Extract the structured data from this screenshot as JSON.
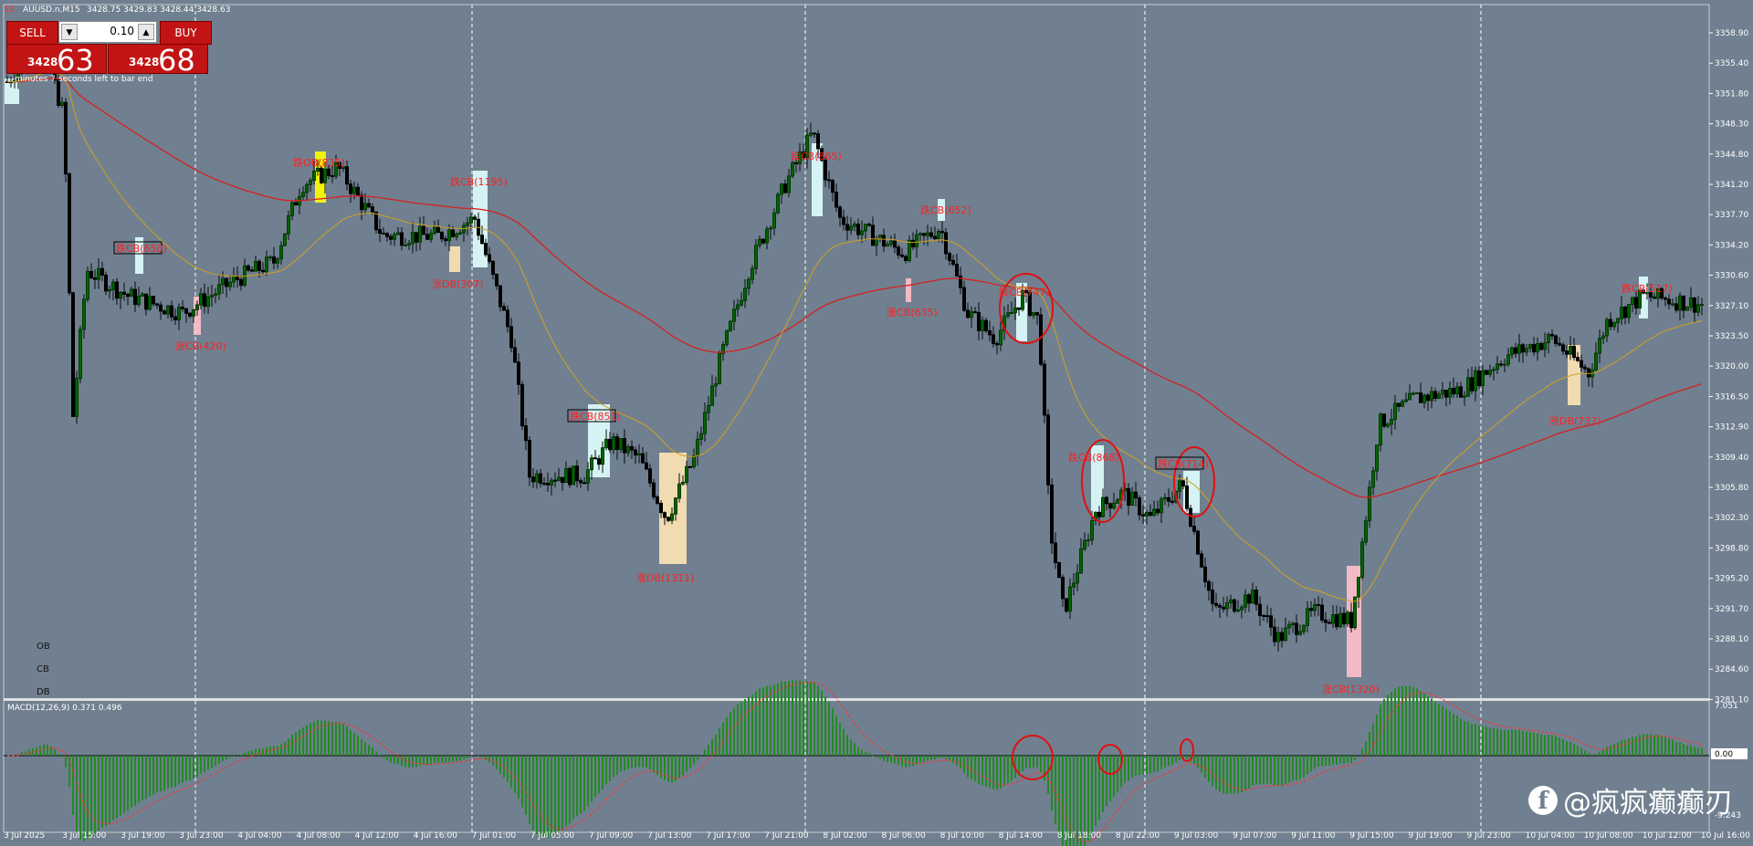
{
  "title": {
    "badge": "52",
    "symbol": "AUUSD.n,M15",
    "ohlc": "3428.75 3429.83 3428.44 3428.63"
  },
  "trade_panel": {
    "sell_label": "SELL",
    "buy_label": "BUY",
    "lot": "0.10",
    "sell_small": "3428",
    "sell_big": "63",
    "buy_small": "3428",
    "buy_big": "68"
  },
  "bar_timer": "minutes 7 seconds left to bar end",
  "legend_labels": [
    "OB",
    "CB",
    "DB"
  ],
  "macd_label": "MACD(12,26,9) 0.371 0.496",
  "price_axis": [
    "3358.90",
    "3355.40",
    "3351.80",
    "3348.30",
    "3344.80",
    "3341.20",
    "3337.70",
    "3334.20",
    "3330.60",
    "3327.10",
    "3323.50",
    "3320.00",
    "3316.50",
    "3312.90",
    "3309.40",
    "3305.80",
    "3302.30",
    "3298.80",
    "3295.20",
    "3291.70",
    "3288.10",
    "3284.60",
    "3281.10"
  ],
  "macd_axis": [
    "7.051",
    "0.00",
    "-9.243"
  ],
  "time_axis": [
    "3 Jul 2025",
    "3 Jul 15:00",
    "3 Jul 19:00",
    "3 Jul 23:00",
    "4 Jul 04:00",
    "4 Jul 08:00",
    "4 Jul 12:00",
    "4 Jul 16:00",
    "7 Jul 01:00",
    "7 Jul 05:00",
    "7 Jul 09:00",
    "7 Jul 13:00",
    "7 Jul 17:00",
    "7 Jul 21:00",
    "8 Jul 02:00",
    "8 Jul 06:00",
    "8 Jul 10:00",
    "8 Jul 14:00",
    "8 Jul 18:00",
    "8 Jul 22:00",
    "9 Jul 03:00",
    "9 Jul 07:00",
    "9 Jul 11:00",
    "9 Jul 15:00",
    "9 Jul 19:00",
    "9 Jul 23:00",
    "10 Jul 04:00",
    "10 Jul 08:00",
    "10 Jul 12:00",
    "10 Jul 16:00"
  ],
  "annotations": [
    {
      "text": "跌CB(650)"
    },
    {
      "text": "涨CB(420)"
    },
    {
      "text": "跌OB(835)"
    },
    {
      "text": "跌CB(1195)"
    },
    {
      "text": "涨DB(307)"
    },
    {
      "text": "跌CB(851)"
    },
    {
      "text": "涨DB(1311)"
    },
    {
      "text": "跌CB(865)"
    },
    {
      "text": "跌CB(652)"
    },
    {
      "text": "涨CB(635)"
    },
    {
      "text": "跌CB(747)"
    },
    {
      "text": "跌CB(868)"
    },
    {
      "text": "跌CB(714)"
    },
    {
      "text": "涨CB(1320)"
    },
    {
      "text": "涨DB(737)"
    },
    {
      "text": "跌CB(517)"
    }
  ],
  "watermark": "@疯疯癫癫刃",
  "colors": {
    "background": "#708090",
    "bull": "#006400",
    "bear": "#000000",
    "ma_slow": "#d62020",
    "ma_fast": "#d4a020",
    "annotation": "#ff2020",
    "zone_cyan": "#e0ffff",
    "zone_orange": "#ffe4b5",
    "zone_pink": "#ffc0cb",
    "zone_yellow": "#ffff00",
    "macd_hist": "#228b22"
  },
  "icons": {
    "watermark_logo": "facebook-icon"
  }
}
